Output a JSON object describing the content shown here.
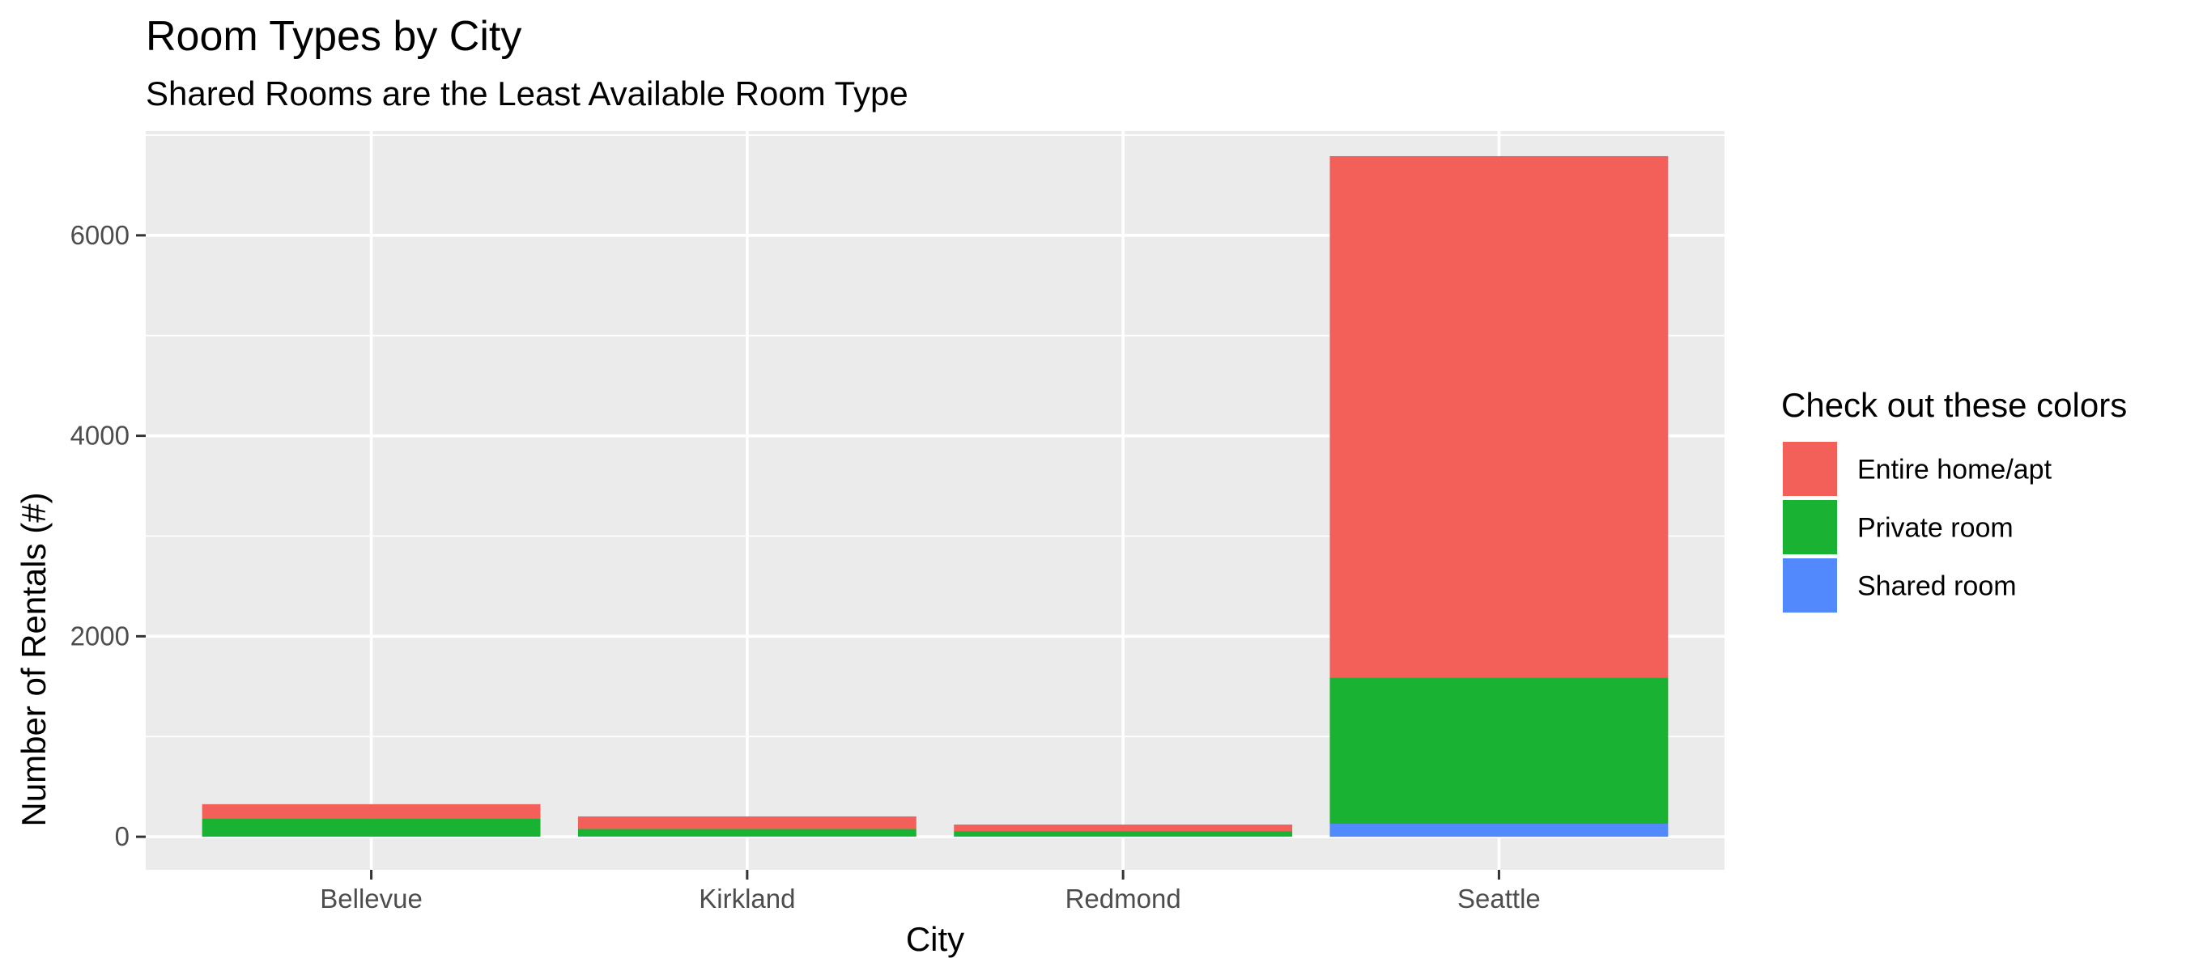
{
  "chart_data": {
    "type": "bar",
    "stacked": true,
    "title": "Room Types by City",
    "subtitle": "Shared Rooms are the Least Available Room Type",
    "xlabel": "City",
    "ylabel": "Number of Rentals (#)",
    "categories": [
      "Bellevue",
      "Kirkland",
      "Redmond",
      "Seattle"
    ],
    "series": [
      {
        "name": "Entire home/apt",
        "color": "#F3605A",
        "values": [
          140,
          125,
          65,
          5200
        ]
      },
      {
        "name": "Private room",
        "color": "#1AB232",
        "values": [
          180,
          75,
          55,
          1460
        ]
      },
      {
        "name": "Shared room",
        "color": "#5289FC",
        "values": [
          5,
          3,
          2,
          130
        ]
      }
    ],
    "stack_order_bottom_to_top": [
      "Shared room",
      "Private room",
      "Entire home/apt"
    ],
    "ylim": [
      -330,
      7040
    ],
    "yticks": [
      0,
      2000,
      4000,
      6000
    ],
    "grid": true,
    "legend": {
      "title": "Check out these colors",
      "position": "right"
    }
  }
}
